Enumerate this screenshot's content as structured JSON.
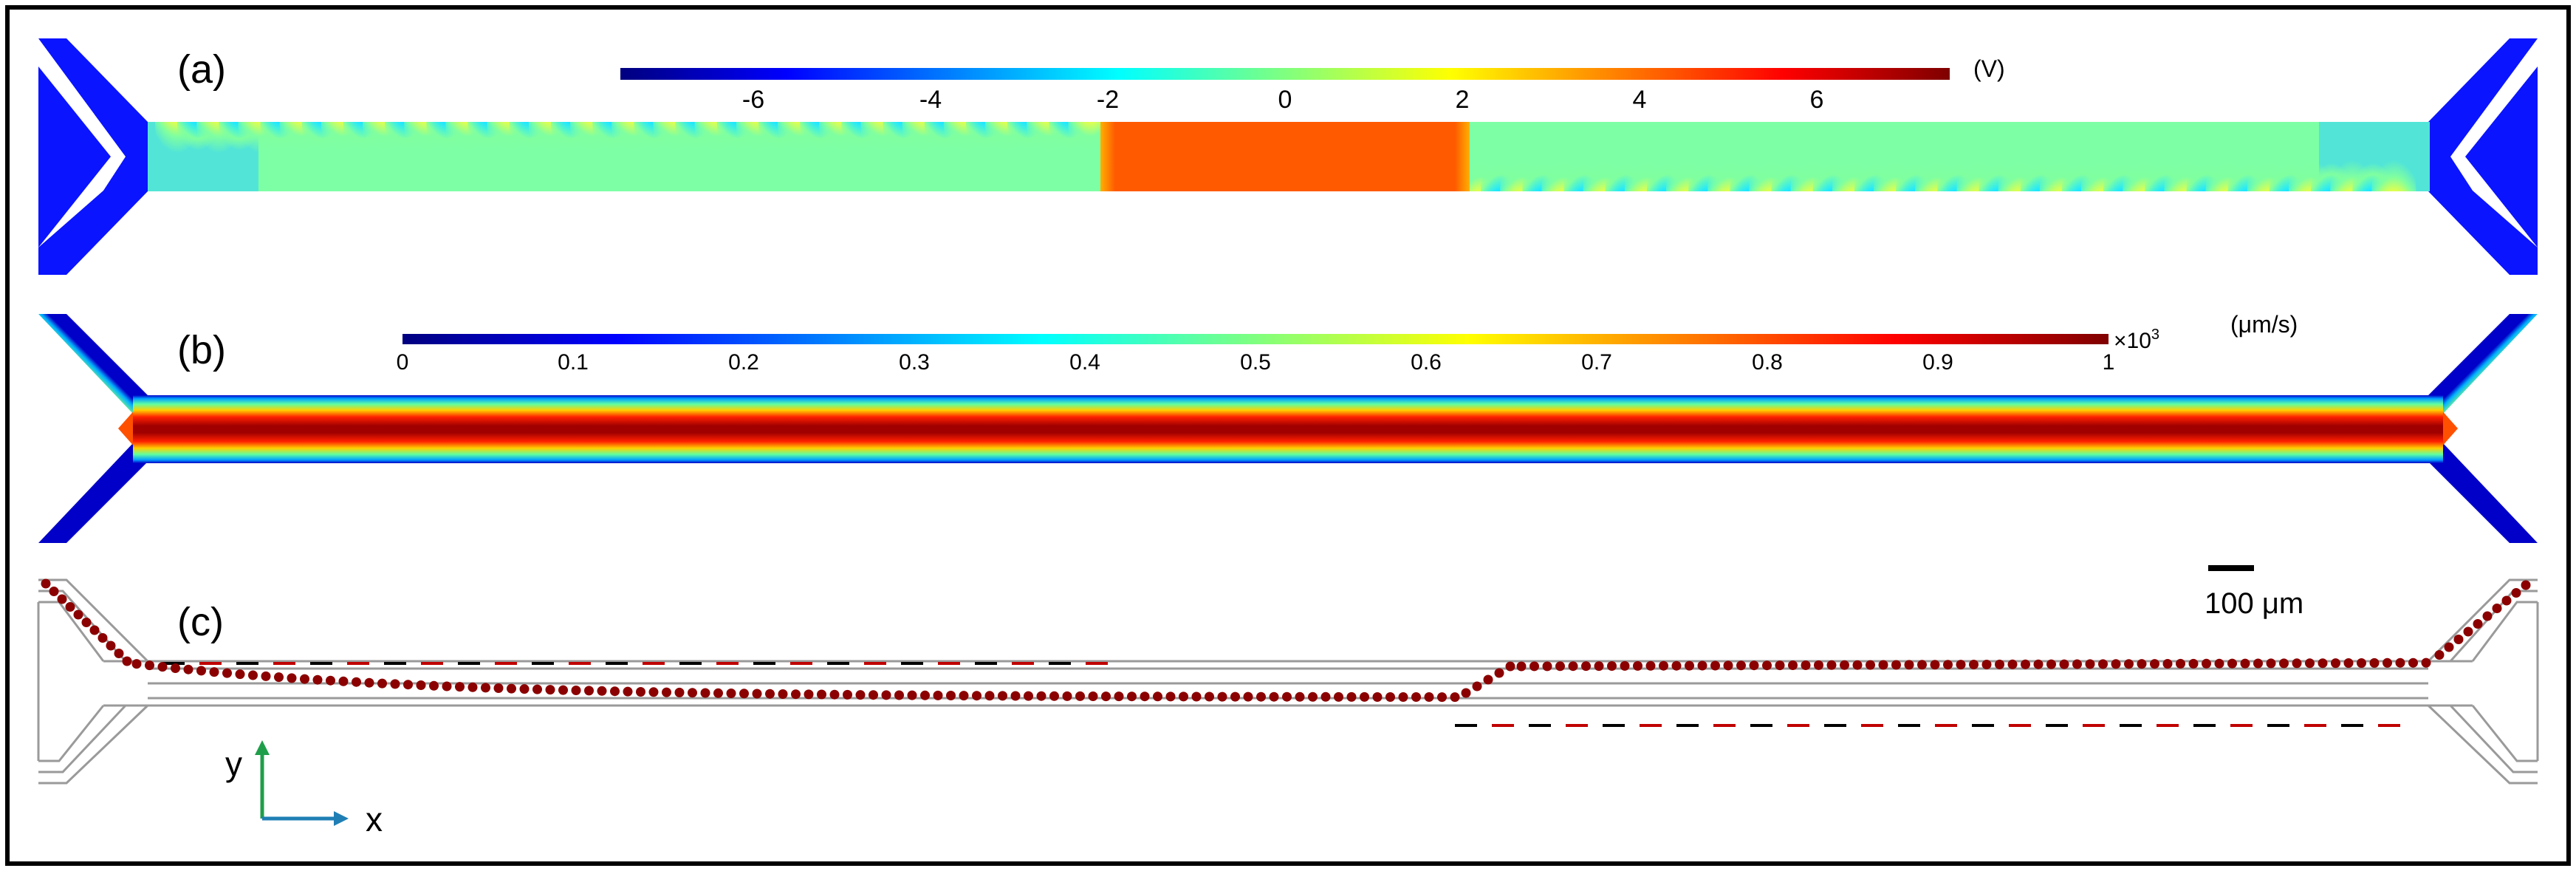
{
  "panels": {
    "a": {
      "label": "(a)",
      "colorbar": {
        "unit": "(V)",
        "ticks": [
          "-6",
          "-4",
          "-2",
          "0",
          "2",
          "4",
          "6"
        ],
        "tick_values": [
          -6,
          -4,
          -2,
          0,
          2,
          4,
          6
        ],
        "range": [
          -7.5,
          7.5
        ]
      }
    },
    "b": {
      "label": "(b)",
      "colorbar": {
        "unit": "(μm/s)",
        "multiplier_base": "×10",
        "multiplier_exp": "3",
        "ticks": [
          "0",
          "0.1",
          "0.2",
          "0.3",
          "0.4",
          "0.5",
          "0.6",
          "0.7",
          "0.8",
          "0.9",
          "1"
        ],
        "tick_values": [
          0,
          0.1,
          0.2,
          0.3,
          0.4,
          0.5,
          0.6,
          0.7,
          0.8,
          0.9,
          1
        ],
        "range": [
          0,
          1
        ]
      }
    },
    "c": {
      "label": "(c)",
      "scale_bar": "100 μm",
      "axes": {
        "y": "y",
        "x": "x"
      }
    }
  },
  "colors": {
    "frame": "#000000",
    "channel_outline": "#9a9a9a",
    "particle": "#8b0000",
    "electrode_dash_black": "#000000",
    "electrode_dash_red": "#c00000",
    "axis_y": "#1f9e4a",
    "axis_x": "#1f7fb5",
    "jet_map": [
      "#00007f",
      "#0000ff",
      "#007fff",
      "#00ffff",
      "#7fff7f",
      "#ffff00",
      "#ff7f00",
      "#ff0000",
      "#7f0000"
    ]
  }
}
